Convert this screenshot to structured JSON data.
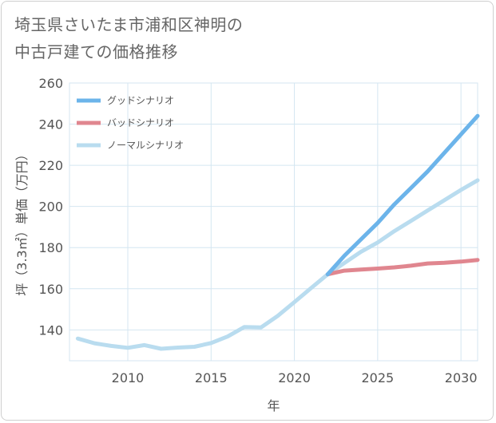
{
  "title_lines": [
    "埼玉県さいたま市浦和区神明の",
    "中古戸建ての価格推移"
  ],
  "chart_data": {
    "type": "line",
    "xlabel": "年",
    "ylabel": "坪（3.3㎡）単価（万円）",
    "xlim": [
      2006.5,
      2031
    ],
    "ylim": [
      125,
      260
    ],
    "x_ticks": [
      2010,
      2015,
      2020,
      2025,
      2030
    ],
    "y_ticks": [
      140,
      160,
      180,
      200,
      220,
      240,
      260
    ],
    "grid": true,
    "legend_position": "top-left",
    "series": [
      {
        "name": "グッドシナリオ",
        "color": "#6cb4ea",
        "x": [
          2022,
          2023,
          2024,
          2025,
          2026,
          2027,
          2028,
          2029,
          2030,
          2031
        ],
        "y": [
          167,
          176,
          184,
          192,
          201,
          209,
          217,
          226,
          235,
          244
        ]
      },
      {
        "name": "バッドシナリオ",
        "color": "#e0868f",
        "x": [
          2022,
          2023,
          2024,
          2025,
          2026,
          2027,
          2028,
          2029,
          2030,
          2031
        ],
        "y": [
          167,
          168.8,
          169.3,
          169.8,
          170.4,
          171.2,
          172.3,
          172.6,
          173.2,
          174
        ]
      },
      {
        "name": "ノーマルシナリオ",
        "color": "#b9dcef",
        "x": [
          2007,
          2008,
          2009,
          2010,
          2011,
          2012,
          2013,
          2014,
          2015,
          2016,
          2017,
          2018,
          2019,
          2020,
          2021,
          2022,
          2023,
          2024,
          2025,
          2026,
          2027,
          2028,
          2029,
          2030,
          2031
        ],
        "y": [
          135.8,
          133.5,
          132.2,
          131.3,
          132.6,
          130.8,
          131.4,
          131.8,
          133.6,
          136.8,
          141.4,
          141.2,
          146.8,
          153.5,
          160.3,
          167,
          172.5,
          178,
          182.5,
          188,
          193,
          198,
          203,
          208,
          212.7
        ]
      }
    ]
  }
}
